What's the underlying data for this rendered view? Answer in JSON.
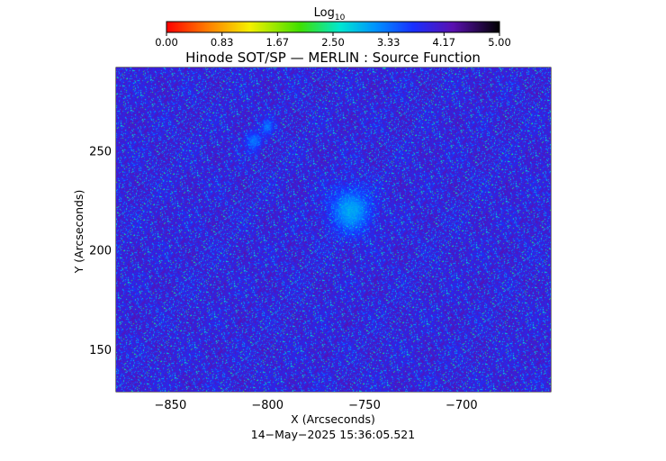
{
  "chart_data": {
    "type": "heatmap",
    "title": "Hinode SOT/SP — MERLIN : Source Function",
    "colorbar": {
      "label_main": "Log",
      "label_sub": "10",
      "ticks": [
        "0.00",
        "0.83",
        "1.67",
        "2.50",
        "3.33",
        "4.17",
        "5.00"
      ],
      "range": [
        0.0,
        5.0
      ],
      "colormap": "rainbow (red-orange-yellow-green-cyan-blue-violet-black)"
    },
    "x_axis": {
      "label": "X (Arcseconds)",
      "range": [
        -878,
        -654
      ],
      "ticks": [
        {
          "value": -850,
          "label": "−850"
        },
        {
          "value": -800,
          "label": "−800"
        },
        {
          "value": -750,
          "label": "−750"
        },
        {
          "value": -700,
          "label": "−700"
        }
      ]
    },
    "y_axis": {
      "label": "Y (Arcseconds)",
      "range": [
        129,
        292
      ],
      "ticks": [
        {
          "value": 150,
          "label": "150"
        },
        {
          "value": 200,
          "label": "200"
        },
        {
          "value": 250,
          "label": "250"
        }
      ]
    },
    "background_level": 4.0,
    "features": [
      {
        "name": "sunspot",
        "x": -757,
        "y": 220,
        "rx": 11,
        "ry": 12,
        "value": 3.0
      },
      {
        "name": "pore-1",
        "x": -807,
        "y": 255,
        "rx": 4,
        "ry": 5,
        "value": 3.3
      },
      {
        "name": "pore-2",
        "x": -800,
        "y": 262,
        "rx": 3,
        "ry": 4,
        "value": 3.3
      }
    ],
    "grid": false
  },
  "timestamp": "14−May−2025 15:36:05.521"
}
